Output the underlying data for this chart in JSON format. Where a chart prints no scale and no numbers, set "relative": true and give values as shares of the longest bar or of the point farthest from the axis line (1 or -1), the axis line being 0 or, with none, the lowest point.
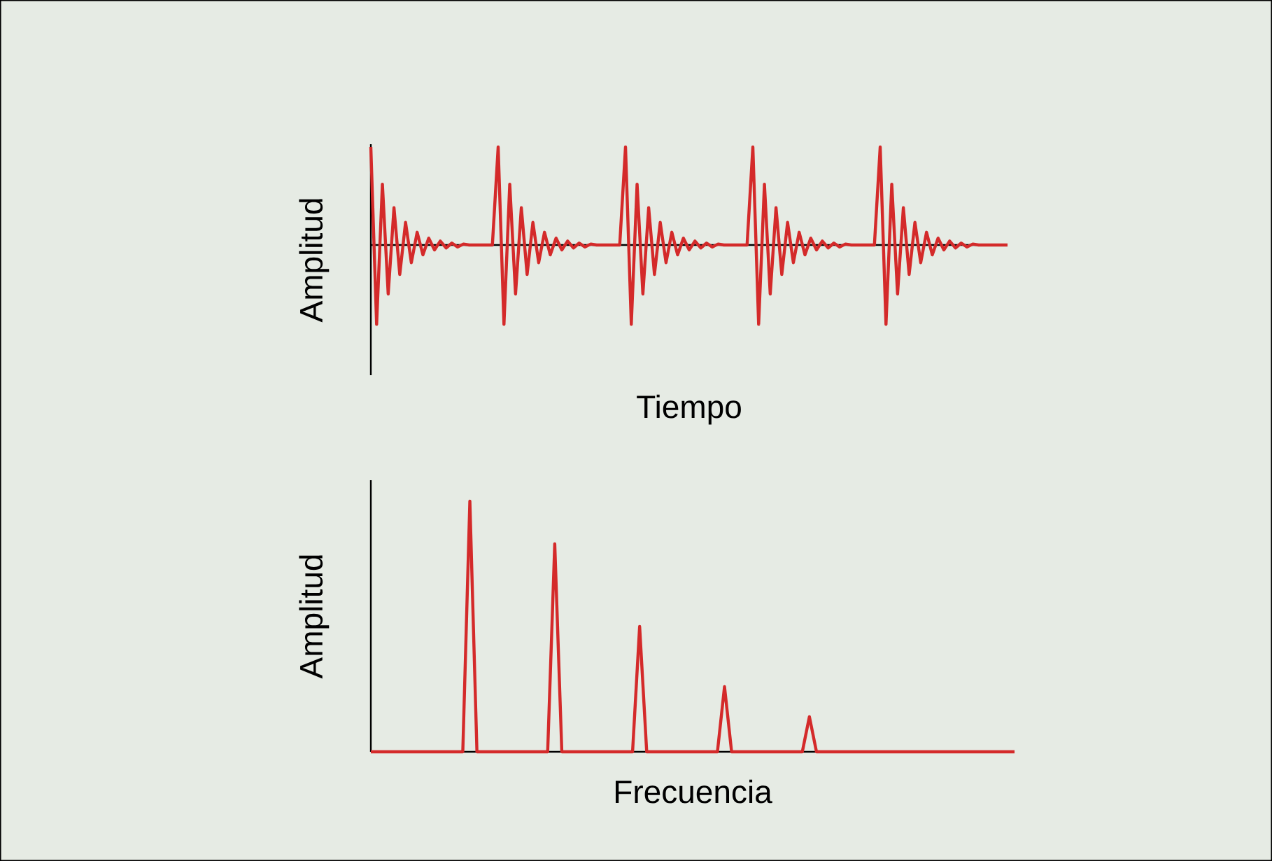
{
  "chart_data": [
    {
      "type": "line",
      "relative": true,
      "xlabel": "Tiempo",
      "ylabel": "Amplitud",
      "categories": [
        null,
        null,
        null,
        null,
        null,
        null,
        null,
        null,
        null,
        null,
        null,
        null,
        null,
        null,
        null,
        null,
        null,
        null,
        null,
        null,
        null,
        null,
        null,
        null,
        null,
        null,
        null,
        null,
        null,
        null,
        null,
        null,
        null,
        null,
        null,
        null,
        null,
        null,
        null,
        null,
        null,
        null,
        null,
        null,
        null,
        null,
        null,
        null,
        null,
        null,
        null,
        null,
        null,
        null,
        null,
        null,
        null,
        null,
        null,
        null,
        null,
        null,
        null,
        null,
        null,
        null,
        null,
        null,
        null,
        null,
        null,
        null,
        null,
        null,
        null,
        null,
        null,
        null,
        null,
        null,
        null,
        null,
        null,
        null,
        null,
        null,
        null,
        null,
        null,
        null,
        null,
        null,
        null,
        null,
        null,
        null,
        null,
        null,
        null,
        null,
        null,
        null,
        null,
        null,
        null,
        null,
        null,
        null,
        null,
        null,
        null
      ],
      "series": [
        {
          "color": "#d42a2a",
          "values": [
            1,
            -0.81,
            0.62,
            -0.5,
            0.38,
            -0.3,
            0.23,
            -0.18,
            0.13,
            -0.1,
            0.07,
            -0.05,
            0.04,
            -0.03,
            0.02,
            -0.02,
            0.01,
            0,
            0,
            0,
            0,
            0,
            1,
            -0.81,
            0.62,
            -0.5,
            0.38,
            -0.3,
            0.23,
            -0.18,
            0.13,
            -0.1,
            0.07,
            -0.05,
            0.04,
            -0.03,
            0.02,
            -0.02,
            0.01,
            0,
            0,
            0,
            0,
            0,
            1,
            -0.81,
            0.62,
            -0.5,
            0.38,
            -0.3,
            0.23,
            -0.18,
            0.13,
            -0.1,
            0.07,
            -0.05,
            0.04,
            -0.03,
            0.02,
            -0.02,
            0.01,
            0,
            0,
            0,
            0,
            0,
            1,
            -0.81,
            0.62,
            -0.5,
            0.38,
            -0.3,
            0.23,
            -0.18,
            0.13,
            -0.1,
            0.07,
            -0.05,
            0.04,
            -0.03,
            0.02,
            -0.02,
            0.01,
            0,
            0,
            0,
            0,
            0,
            1,
            -0.81,
            0.62,
            -0.5,
            0.38,
            -0.3,
            0.23,
            -0.18,
            0.13,
            -0.1,
            0.07,
            -0.05,
            0.04,
            -0.03,
            0.02,
            -0.02,
            0.01,
            0,
            0,
            0,
            0,
            0,
            0
          ]
        }
      ]
    },
    {
      "type": "line",
      "relative": true,
      "xlabel": "Frecuencia",
      "ylabel": "Amplitud",
      "categories": [
        null,
        null,
        null,
        null,
        null,
        null,
        null,
        null,
        null,
        null,
        null,
        null,
        null,
        null,
        null,
        null,
        null,
        null,
        null,
        null,
        null,
        null,
        null,
        null,
        null,
        null,
        null,
        null,
        null,
        null,
        null,
        null,
        null,
        null,
        null,
        null,
        null,
        null,
        null,
        null,
        null,
        null,
        null,
        null,
        null,
        null,
        null,
        null,
        null,
        null,
        null,
        null,
        null,
        null,
        null,
        null,
        null,
        null,
        null,
        null,
        null,
        null,
        null,
        null,
        null,
        null,
        null,
        null,
        null,
        null,
        null,
        null,
        null,
        null,
        null,
        null,
        null,
        null,
        null,
        null,
        null,
        null,
        null,
        null,
        null,
        null,
        null,
        null,
        null,
        null,
        null,
        null
      ],
      "series": [
        {
          "color": "#d42a2a",
          "values": [
            0,
            0,
            0,
            0,
            0,
            0,
            0,
            0,
            0,
            0,
            0,
            0,
            0,
            0,
            1,
            0,
            0,
            0,
            0,
            0,
            0,
            0,
            0,
            0,
            0,
            0,
            0.83,
            0,
            0,
            0,
            0,
            0,
            0,
            0,
            0,
            0,
            0,
            0,
            0.5,
            0,
            0,
            0,
            0,
            0,
            0,
            0,
            0,
            0,
            0,
            0,
            0.26,
            0,
            0,
            0,
            0,
            0,
            0,
            0,
            0,
            0,
            0,
            0,
            0.14,
            0,
            0,
            0,
            0,
            0,
            0,
            0,
            0,
            0,
            0,
            0,
            0,
            0,
            0,
            0,
            0,
            0,
            0,
            0,
            0,
            0,
            0,
            0,
            0,
            0,
            0,
            0,
            0,
            0
          ]
        }
      ]
    }
  ]
}
